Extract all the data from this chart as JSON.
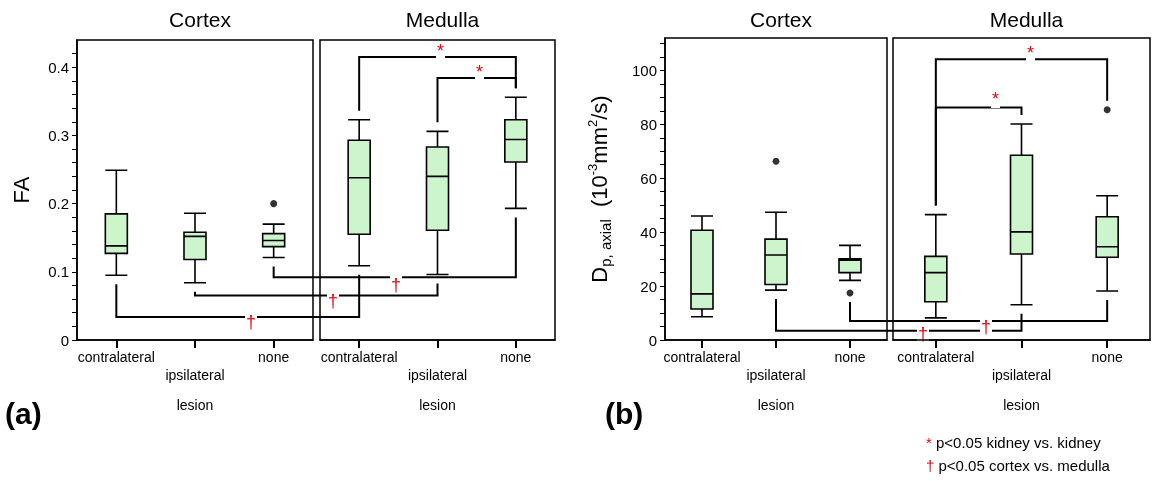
{
  "chart_data": [
    {
      "type": "box",
      "title": "Cortex",
      "xlabel": "lesion",
      "ylabel": "FA",
      "categories": [
        "contralateral",
        "ipsilateral",
        "none"
      ],
      "series": [
        {
          "color": "#ccf5cc",
          "boxes": [
            {
              "low": 0.095,
              "q1": 0.127,
              "median": 0.138,
              "q3": 0.185,
              "high": 0.249
            },
            {
              "low": 0.084,
              "q1": 0.118,
              "median": 0.152,
              "q3": 0.158,
              "high": 0.186
            },
            {
              "low": 0.121,
              "q1": 0.137,
              "median": 0.146,
              "q3": 0.156,
              "high": 0.17,
              "outliers": [
                0.2
              ]
            }
          ]
        }
      ],
      "ylim": [
        0,
        0.44
      ],
      "yticks": [
        0,
        {
          "value": 0.02,
          "label": null
        },
        {
          "value": 0.04,
          "label": null
        },
        {
          "value": 0.06,
          "label": null
        },
        {
          "value": 0.08,
          "label": null
        },
        0.1,
        {
          "value": 0.12,
          "label": null
        },
        {
          "value": 0.14,
          "label": null
        },
        {
          "value": 0.16,
          "label": null
        },
        {
          "value": 0.18,
          "label": null
        },
        0.2,
        {
          "value": 0.22,
          "label": null
        },
        {
          "value": 0.24,
          "label": null
        },
        {
          "value": 0.26,
          "label": null
        },
        {
          "value": 0.28,
          "label": null
        },
        0.3,
        {
          "value": 0.32,
          "label": null
        },
        {
          "value": 0.34,
          "label": null
        },
        {
          "value": 0.36,
          "label": null
        },
        {
          "value": 0.38,
          "label": null
        },
        0.4,
        {
          "value": 0.42,
          "label": null
        }
      ],
      "annotations": [
        "(a)",
        "†",
        "†"
      ]
    },
    {
      "type": "box",
      "title": "Medulla",
      "xlabel": "lesion",
      "categories": [
        "contralateral",
        "ipsilateral",
        "none"
      ],
      "series": [
        {
          "color": "#ccf5cc",
          "boxes": [
            {
              "low": 0.109,
              "q1": 0.155,
              "median": 0.238,
              "q3": 0.293,
              "high": 0.323
            },
            {
              "low": 0.096,
              "q1": 0.161,
              "median": 0.24,
              "q3": 0.283,
              "high": 0.306
            },
            {
              "low": 0.193,
              "q1": 0.261,
              "median": 0.294,
              "q3": 0.323,
              "high": 0.356
            }
          ]
        }
      ],
      "ylim": [
        0,
        0.44
      ],
      "tick_labels": "x",
      "annotations": [
        "*",
        "*",
        "†"
      ]
    },
    {
      "type": "box",
      "title": "Cortex",
      "xlabel": "lesion",
      "ylabel": "D$_{p, axial}$  (10$^{-3}$mm$^{2}$/s)",
      "categories": [
        "contralateral",
        "ipsilateral",
        "none"
      ],
      "series": [
        {
          "color": "#ccf5cc",
          "boxes": [
            {
              "low": 8.6,
              "q1": 11.5,
              "median": 17.1,
              "q3": 40.7,
              "high": 46
            },
            {
              "low": 18.5,
              "q1": 20.6,
              "median": 31.5,
              "q3": 37.4,
              "high": 47.4,
              "outliers": [
                66.3
              ]
            },
            {
              "low": 22.1,
              "q1": 25,
              "median": 29.6,
              "q3": 30.1,
              "high": 35.1,
              "outliers": [
                17.4
              ]
            }
          ]
        }
      ],
      "ylim": [
        0,
        112
      ],
      "yticks": [
        0,
        {
          "value": 5,
          "label": null
        },
        {
          "value": 10,
          "label": null
        },
        {
          "value": 15,
          "label": null
        },
        20,
        {
          "value": 25,
          "label": null
        },
        {
          "value": 30,
          "label": null
        },
        {
          "value": 35,
          "label": null
        },
        40,
        {
          "value": 45,
          "label": null
        },
        {
          "value": 50,
          "label": null
        },
        {
          "value": 55,
          "label": null
        },
        60,
        {
          "value": 65,
          "label": null
        },
        {
          "value": 70,
          "label": null
        },
        {
          "value": 75,
          "label": null
        },
        80,
        {
          "value": 85,
          "label": null
        },
        {
          "value": 90,
          "label": null
        },
        {
          "value": 95,
          "label": null
        },
        100,
        {
          "value": 105,
          "label": null
        },
        {
          "value": 110,
          "label": null
        }
      ],
      "annotations": [
        "(b)"
      ]
    },
    {
      "type": "box",
      "title": "Medulla",
      "xlabel": "lesion",
      "categories": [
        "contralateral",
        "ipsilateral",
        "none"
      ],
      "series": [
        {
          "color": "#ccf5cc",
          "boxes": [
            {
              "low": 8.2,
              "q1": 14.2,
              "median": 25,
              "q3": 31,
              "high": 46.5
            },
            {
              "low": 13.1,
              "q1": 31.9,
              "median": 40.1,
              "q3": 68.5,
              "high": 80.1
            },
            {
              "low": 18.2,
              "q1": 30.7,
              "median": 34.6,
              "q3": 45.7,
              "high": 53.5,
              "outliers": [
                85.4
              ]
            }
          ]
        }
      ],
      "ylim": [
        0,
        112
      ],
      "tick_labels": "x",
      "annotations": [
        "*",
        "*",
        "†",
        "†",
        "* p<0.05 kidney vs. kidney",
        "† p<0.05 cortex vs. medulla"
      ]
    }
  ]
}
